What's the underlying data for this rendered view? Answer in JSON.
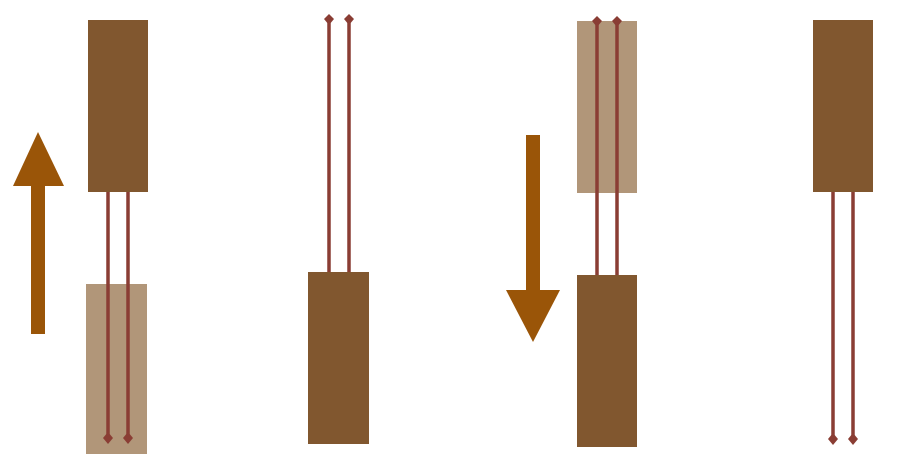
{
  "colors": {
    "block": "#81572F",
    "block_ghost": "#B19679",
    "wire": "#8A3D34",
    "arrow": "#9A5508",
    "background": "#FFFFFF"
  },
  "panels": [
    {
      "label": "",
      "motion": "up",
      "wire_end": "bottom",
      "ghost_block": "bottom"
    },
    {
      "label": "",
      "motion": "none",
      "wire_end": "top",
      "ghost_block": "none"
    },
    {
      "label": "",
      "motion": "down",
      "wire_end": "top",
      "ghost_block": "top"
    },
    {
      "label": "",
      "motion": "none",
      "wire_end": "bottom",
      "ghost_block": "none"
    }
  ]
}
